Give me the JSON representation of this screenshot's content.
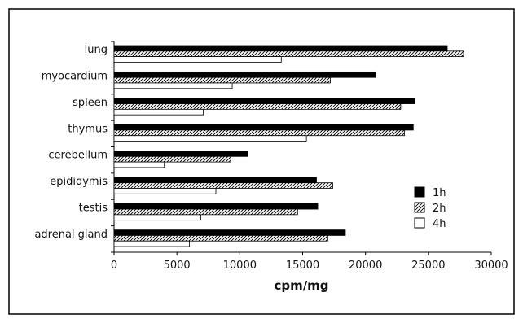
{
  "chart_data": {
    "type": "bar",
    "orientation": "horizontal",
    "title": "",
    "xlabel": "cpm/mg",
    "ylabel": "",
    "xlim": [
      0,
      30000
    ],
    "xticks": [
      0,
      5000,
      10000,
      15000,
      20000,
      25000,
      30000
    ],
    "grid": false,
    "legend_position": "right",
    "categories": [
      "lung",
      "myocardium",
      "spleen",
      "thymus",
      "cerebellum",
      "epididymis",
      "testis",
      "adrenal gland"
    ],
    "series": [
      {
        "name": "1h",
        "fill": "solid-black",
        "values": [
          26500,
          20800,
          23900,
          23800,
          10600,
          16100,
          16200,
          18400
        ]
      },
      {
        "name": "2h",
        "fill": "diagonal-hatch",
        "values": [
          27800,
          17200,
          22800,
          23100,
          9300,
          17400,
          14600,
          17000
        ]
      },
      {
        "name": "4h",
        "fill": "white",
        "values": [
          13300,
          9400,
          7100,
          15300,
          4000,
          8100,
          6900,
          6000
        ]
      }
    ]
  }
}
